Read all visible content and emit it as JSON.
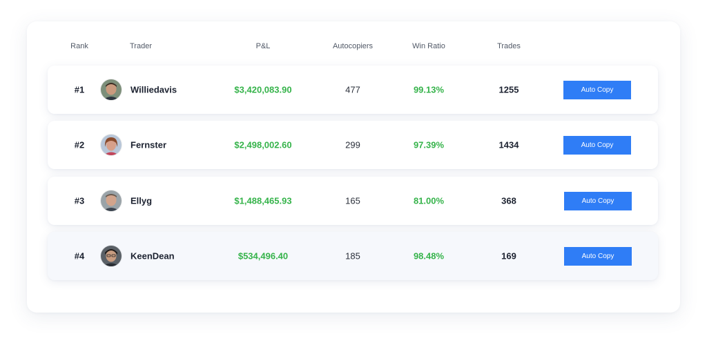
{
  "table": {
    "columns": {
      "rank": "Rank",
      "trader": "Trader",
      "pnl": "P&L",
      "autocopiers": "Autocopiers",
      "win_ratio": "Win Ratio",
      "trades": "Trades"
    },
    "button_label": "Auto Copy",
    "colors": {
      "accent": "#2f7df6",
      "positive": "#35b34a"
    },
    "rows": [
      {
        "rank": "#1",
        "trader": "Williedavis",
        "pnl": "$3,420,083.90",
        "autocopiers": "477",
        "win_ratio": "99.13%",
        "trades": "1255",
        "avatar_icon": "trader-avatar-icon"
      },
      {
        "rank": "#2",
        "trader": "Fernster",
        "pnl": "$2,498,002.60",
        "autocopiers": "299",
        "win_ratio": "97.39%",
        "trades": "1434",
        "avatar_icon": "trader-avatar-icon"
      },
      {
        "rank": "#3",
        "trader": "Ellyg",
        "pnl": "$1,488,465.93",
        "autocopiers": "165",
        "win_ratio": "81.00%",
        "trades": "368",
        "avatar_icon": "trader-avatar-icon"
      },
      {
        "rank": "#4",
        "trader": "KeenDean",
        "pnl": "$534,496.40",
        "autocopiers": "185",
        "win_ratio": "98.48%",
        "trades": "169",
        "avatar_icon": "trader-avatar-icon"
      }
    ]
  }
}
